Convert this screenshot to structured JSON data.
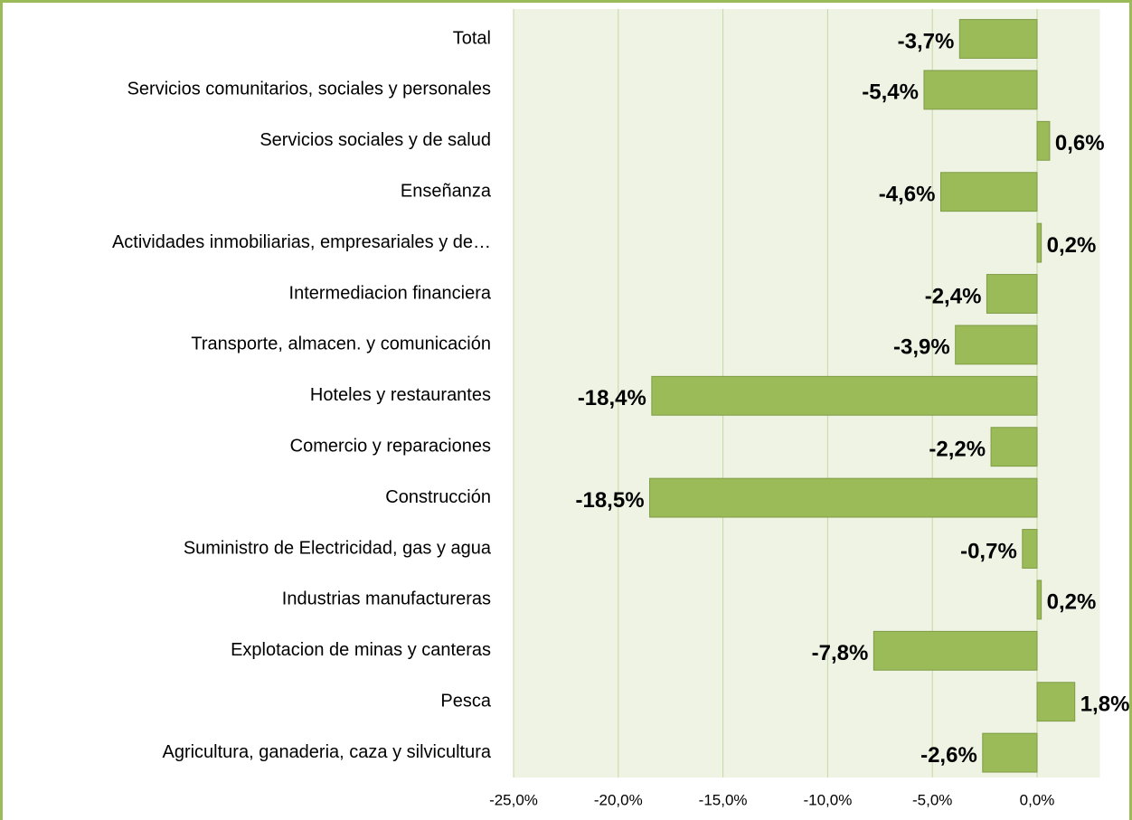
{
  "chart_data": {
    "type": "barh",
    "categories": [
      "Total",
      "Servicios comunitarios, sociales y personales",
      "Servicios sociales y de salud",
      "Enseñanza",
      "Actividades inmobiliarias, empresariales y de…",
      "Intermediacion financiera",
      "Transporte, almacen. y comunicación",
      "Hoteles y restaurantes",
      "Comercio y reparaciones",
      "Construcción",
      "Suministro de Electricidad, gas y agua",
      "Industrias manufactureras",
      "Explotacion de minas y canteras",
      "Pesca",
      "Agricultura, ganaderia, caza y silvicultura"
    ],
    "values": [
      -3.7,
      -5.4,
      0.6,
      -4.6,
      0.2,
      -2.4,
      -3.9,
      -18.4,
      -2.2,
      -18.5,
      -0.7,
      0.2,
      -7.8,
      1.8,
      -2.6
    ],
    "value_labels": [
      "-3,7%",
      "-5,4%",
      "0,6%",
      "-4,6%",
      "0,2%",
      "-2,4%",
      "-3,9%",
      "-18,4%",
      "-2,2%",
      "-18,5%",
      "-0,7%",
      "0,2%",
      "-7,8%",
      "1,8%",
      "-2,6%"
    ],
    "color": "#9bbb59",
    "xlim": [
      -25,
      3
    ],
    "xticks": [
      {
        "value": -25,
        "label": "-25,0%"
      },
      {
        "value": -20,
        "label": "-20,0%"
      },
      {
        "value": -15,
        "label": "-15,0%"
      },
      {
        "value": -10,
        "label": "-10,0%"
      },
      {
        "value": -5,
        "label": "-5,0%"
      },
      {
        "value": 0,
        "label": "0,0%"
      }
    ],
    "grid": true
  }
}
